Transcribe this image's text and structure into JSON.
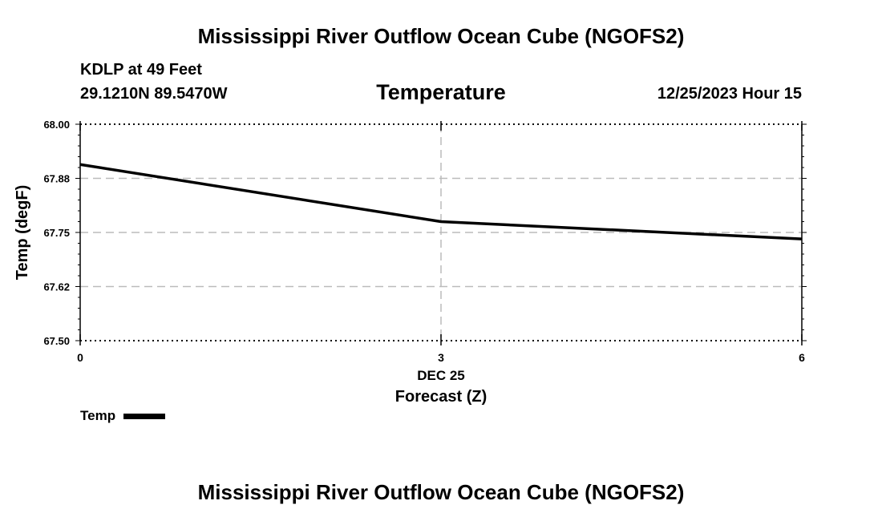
{
  "header": {
    "title": "Mississippi River Outflow Ocean Cube (NGOFS2)",
    "station": "KDLP at 49 Feet",
    "coordinates": "29.1210N  89.5470W",
    "datetime": "12/25/2023 Hour 15"
  },
  "footer": {
    "title": "Mississippi River Outflow Ocean Cube (NGOFS2)"
  },
  "chart_data": {
    "type": "line",
    "title": "Temperature",
    "xlabel": "Forecast (Z)",
    "ylabel": "Temp (degF)",
    "x_ticks": [
      0,
      3,
      6
    ],
    "x_tick_labels": [
      "0",
      "3",
      "6"
    ],
    "x_date_label": "DEC 25",
    "y_ticks": [
      67.5,
      67.625,
      67.75,
      67.875,
      68.0
    ],
    "y_tick_labels": [
      "67.50",
      "67.62",
      "67.75",
      "67.88",
      "68.00"
    ],
    "xlim": [
      0,
      6
    ],
    "ylim": [
      67.5,
      68.0
    ],
    "grid": true,
    "legend_position": "bottom-left",
    "series": [
      {
        "name": "Temp",
        "color": "#000000",
        "x": [
          0,
          3,
          6
        ],
        "values": [
          67.907,
          67.775,
          67.735
        ]
      }
    ]
  }
}
